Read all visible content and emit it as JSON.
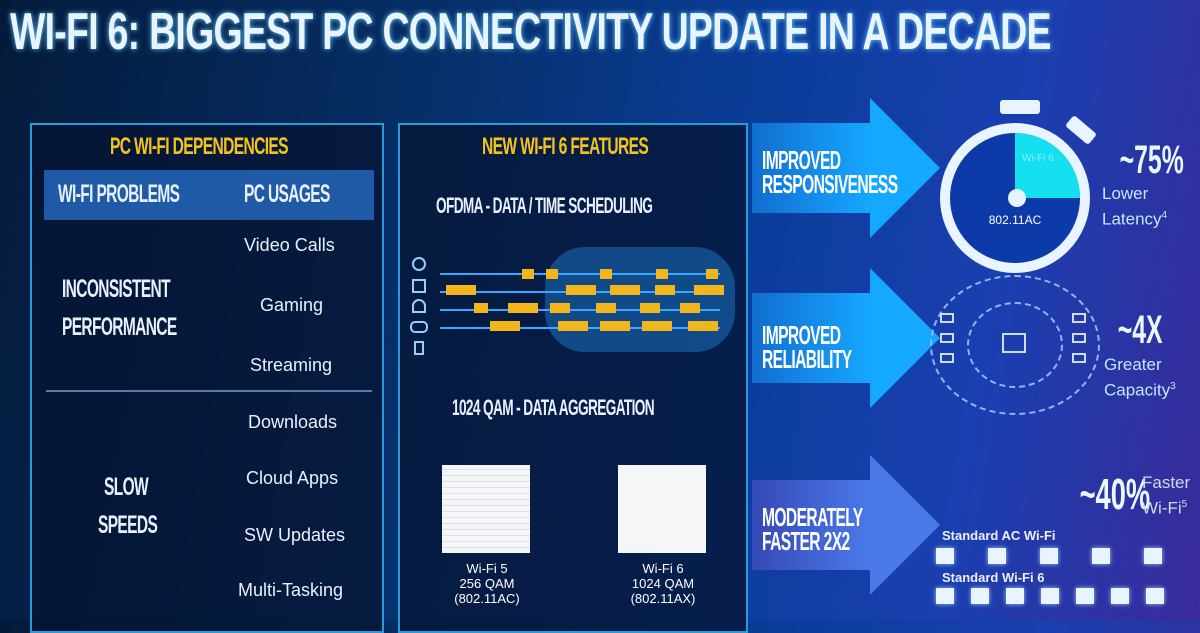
{
  "title": "WI-FI 6: BIGGEST PC CONNECTIVITY UPDATE IN A DECADE",
  "left_panel": {
    "header": "PC WI-FI DEPENDENCIES",
    "col1": "WI-FI PROBLEMS",
    "col2": "PC USAGES",
    "problem1": [
      "INCONSISTENT",
      "PERFORMANCE"
    ],
    "problem2": [
      "SLOW",
      "SPEEDS"
    ],
    "usages1": [
      "Video Calls",
      "Gaming",
      "Streaming"
    ],
    "usages2": [
      "Downloads",
      "Cloud Apps",
      "SW Updates",
      "Multi-Tasking"
    ]
  },
  "mid_panel": {
    "header": "NEW WI-FI 6 FEATURES",
    "feature1": "OFDMA - DATA / TIME SCHEDULING",
    "feature2": "1024 QAM - DATA AGGREGATION",
    "qam1": [
      "Wi-Fi 5",
      "256 QAM",
      "(802.11AC)"
    ],
    "qam2": [
      "Wi-Fi 6",
      "1024 QAM",
      "(802.11AX)"
    ]
  },
  "benefits": [
    {
      "label": [
        "IMPROVED",
        "RESPONSIVENESS"
      ],
      "stat": "~75%",
      "desc": [
        "Lower",
        "Latency"
      ],
      "sup": "4"
    },
    {
      "label": [
        "IMPROVED",
        "RELIABILITY"
      ],
      "stat": "~4X",
      "desc": [
        "Greater",
        "Capacity"
      ],
      "sup": "3"
    },
    {
      "label": [
        "MODERATELY",
        "FASTER 2X2"
      ],
      "stat": "~40%",
      "desc": [
        "Faster",
        "Wi-Fi"
      ],
      "sup": "5"
    }
  ],
  "stopwatch": {
    "inner": "Wi-Fi 6",
    "label": "802.11AC",
    "fraction": 0.25
  },
  "speed": {
    "row1": "Standard AC Wi-Fi",
    "row1_blocks": 5,
    "row2": "Standard Wi-Fi 6",
    "row2_blocks": 7
  },
  "colors": {
    "accent_yellow": "#f3c21c",
    "arrow_blue": "#15a8ff",
    "stopwatch_fill": "#14e0f0"
  }
}
